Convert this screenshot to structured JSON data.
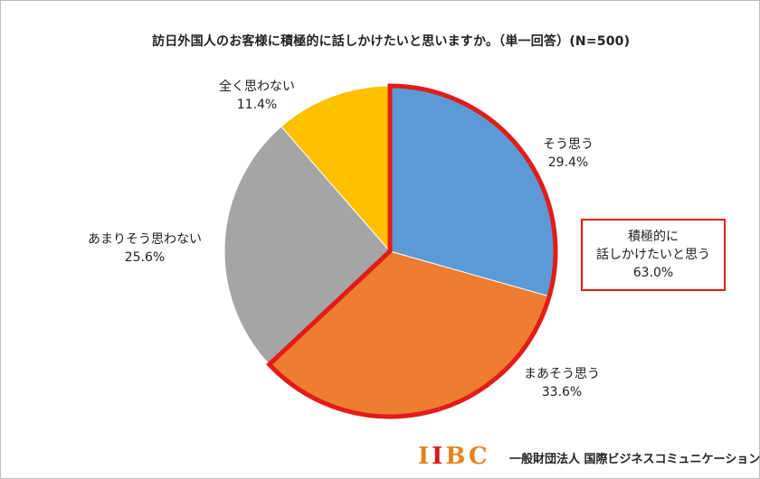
{
  "chart_data": {
    "type": "pie",
    "title": "訪日外国人のお客様に積極的に話しかけたいと思いますか。（単一回答）(N=500)",
    "slices": [
      {
        "label": "そう思う",
        "value": 29.4,
        "value_label": "29.4%",
        "color": "#5b9bd5"
      },
      {
        "label": "まあそう思う",
        "value": 33.6,
        "value_label": "33.6%",
        "color": "#ed7d31"
      },
      {
        "label": "あまりそう思わない",
        "value": 25.6,
        "value_label": "25.6%",
        "color": "#a5a5a5"
      },
      {
        "label": "全く思わない",
        "value": 11.4,
        "value_label": "11.4%",
        "color": "#ffc000"
      }
    ],
    "highlight": {
      "slices": [
        "そう思う",
        "まあそう思う"
      ],
      "outline_color": "#e31b1b",
      "lines": [
        "積極的に",
        "話しかけたいと思う",
        "63.0%"
      ]
    },
    "start_angle": "12 o'clock",
    "direction": "clockwise"
  },
  "footer": {
    "logo_letters": [
      {
        "char": "I",
        "color": "#e8821e"
      },
      {
        "char": "I",
        "color": "#d71920"
      },
      {
        "char": "B",
        "color": "#e8821e"
      },
      {
        "char": "C",
        "color": "#e8821e"
      }
    ],
    "organization": "一般財団法人 国際ビジネスコミュニケーション協会"
  }
}
